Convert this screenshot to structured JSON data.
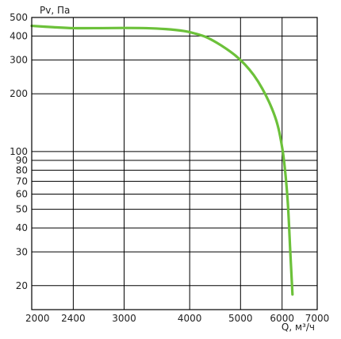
{
  "chart_data": {
    "type": "line",
    "title": "",
    "xlabel": "Q, м³/ч",
    "ylabel": "Pv, Па",
    "x_scale": "log",
    "y_scale": "log",
    "xlim": [
      2000,
      7000
    ],
    "ylim": [
      15,
      500
    ],
    "x_ticks": [
      2000,
      2400,
      3000,
      4000,
      5000,
      6000,
      7000
    ],
    "y_ticks": [
      20,
      30,
      40,
      50,
      60,
      70,
      80,
      90,
      100,
      200,
      300,
      400,
      500
    ],
    "grid": true,
    "legend": "none",
    "series": [
      {
        "color": "#6cc13a",
        "x": [
          2000,
          2200,
          2400,
          2700,
          3000,
          3300,
          3600,
          3900,
          4100,
          4300,
          4500,
          4700,
          4900,
          5100,
          5300,
          5500,
          5700,
          5850,
          5950,
          6050,
          6150,
          6220,
          6280
        ],
        "y": [
          452,
          445,
          440,
          440,
          441,
          440,
          435,
          425,
          412,
          395,
          370,
          343,
          315,
          284,
          250,
          213,
          175,
          145,
          120,
          90,
          55,
          30,
          18
        ]
      }
    ]
  }
}
